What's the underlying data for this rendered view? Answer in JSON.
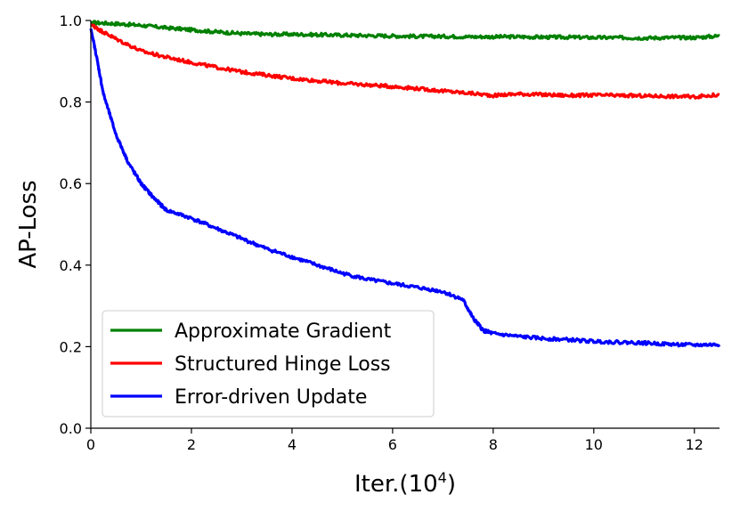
{
  "chart_data": {
    "type": "line",
    "xlabel": "Iter.(10",
    "xlabel_sup": "4",
    "xlabel_close": ")",
    "ylabel": "AP-Loss",
    "xlim": [
      0,
      12.5
    ],
    "ylim": [
      0,
      1.0
    ],
    "x_ticks": [
      "0",
      "2",
      "4",
      "6",
      "8",
      "10",
      "12"
    ],
    "y_ticks": [
      "0.0",
      "0.2",
      "0.4",
      "0.6",
      "0.8",
      "1.0"
    ],
    "grid": false,
    "legend_position": "lower-left",
    "series": [
      {
        "name": "Approximate Gradient",
        "color": "#008000",
        "x": [
          0,
          0.5,
          1,
          1.5,
          2,
          2.5,
          3,
          3.5,
          4,
          4.5,
          5,
          5.5,
          6,
          6.5,
          7,
          7.5,
          8,
          8.5,
          9,
          9.5,
          10,
          10.5,
          11,
          11.5,
          12,
          12.5
        ],
        "y": [
          0.995,
          0.992,
          0.988,
          0.982,
          0.977,
          0.972,
          0.968,
          0.966,
          0.966,
          0.965,
          0.964,
          0.963,
          0.962,
          0.961,
          0.961,
          0.96,
          0.96,
          0.96,
          0.959,
          0.959,
          0.958,
          0.958,
          0.957,
          0.958,
          0.958,
          0.962
        ]
      },
      {
        "name": "Structured Hinge Loss",
        "color": "#ff0000",
        "x": [
          0,
          0.2,
          0.5,
          1,
          1.5,
          2,
          2.5,
          3,
          3.5,
          4,
          4.5,
          5,
          5.5,
          6,
          6.5,
          7,
          7.5,
          8,
          8.5,
          9,
          9.5,
          10,
          10.5,
          11,
          11.5,
          12,
          12.5
        ],
        "y": [
          0.99,
          0.975,
          0.955,
          0.925,
          0.91,
          0.897,
          0.885,
          0.874,
          0.866,
          0.858,
          0.852,
          0.846,
          0.842,
          0.838,
          0.833,
          0.827,
          0.822,
          0.816,
          0.82,
          0.818,
          0.816,
          0.817,
          0.816,
          0.815,
          0.814,
          0.813,
          0.818
        ]
      },
      {
        "name": "Error-driven Update",
        "color": "#0000ff",
        "x": [
          0,
          0.1,
          0.25,
          0.5,
          0.75,
          1,
          1.25,
          1.5,
          2,
          2.5,
          3,
          3.5,
          4,
          4.5,
          5,
          5.5,
          6,
          6.5,
          7,
          7.4,
          7.6,
          7.8,
          8,
          8.5,
          9,
          9.5,
          10,
          10.5,
          11,
          11.5,
          12,
          12.5
        ],
        "y": [
          0.98,
          0.92,
          0.82,
          0.72,
          0.65,
          0.6,
          0.565,
          0.535,
          0.515,
          0.49,
          0.465,
          0.44,
          0.42,
          0.4,
          0.38,
          0.365,
          0.355,
          0.345,
          0.335,
          0.315,
          0.27,
          0.24,
          0.232,
          0.225,
          0.22,
          0.217,
          0.213,
          0.211,
          0.209,
          0.206,
          0.204,
          0.205
        ]
      }
    ]
  }
}
